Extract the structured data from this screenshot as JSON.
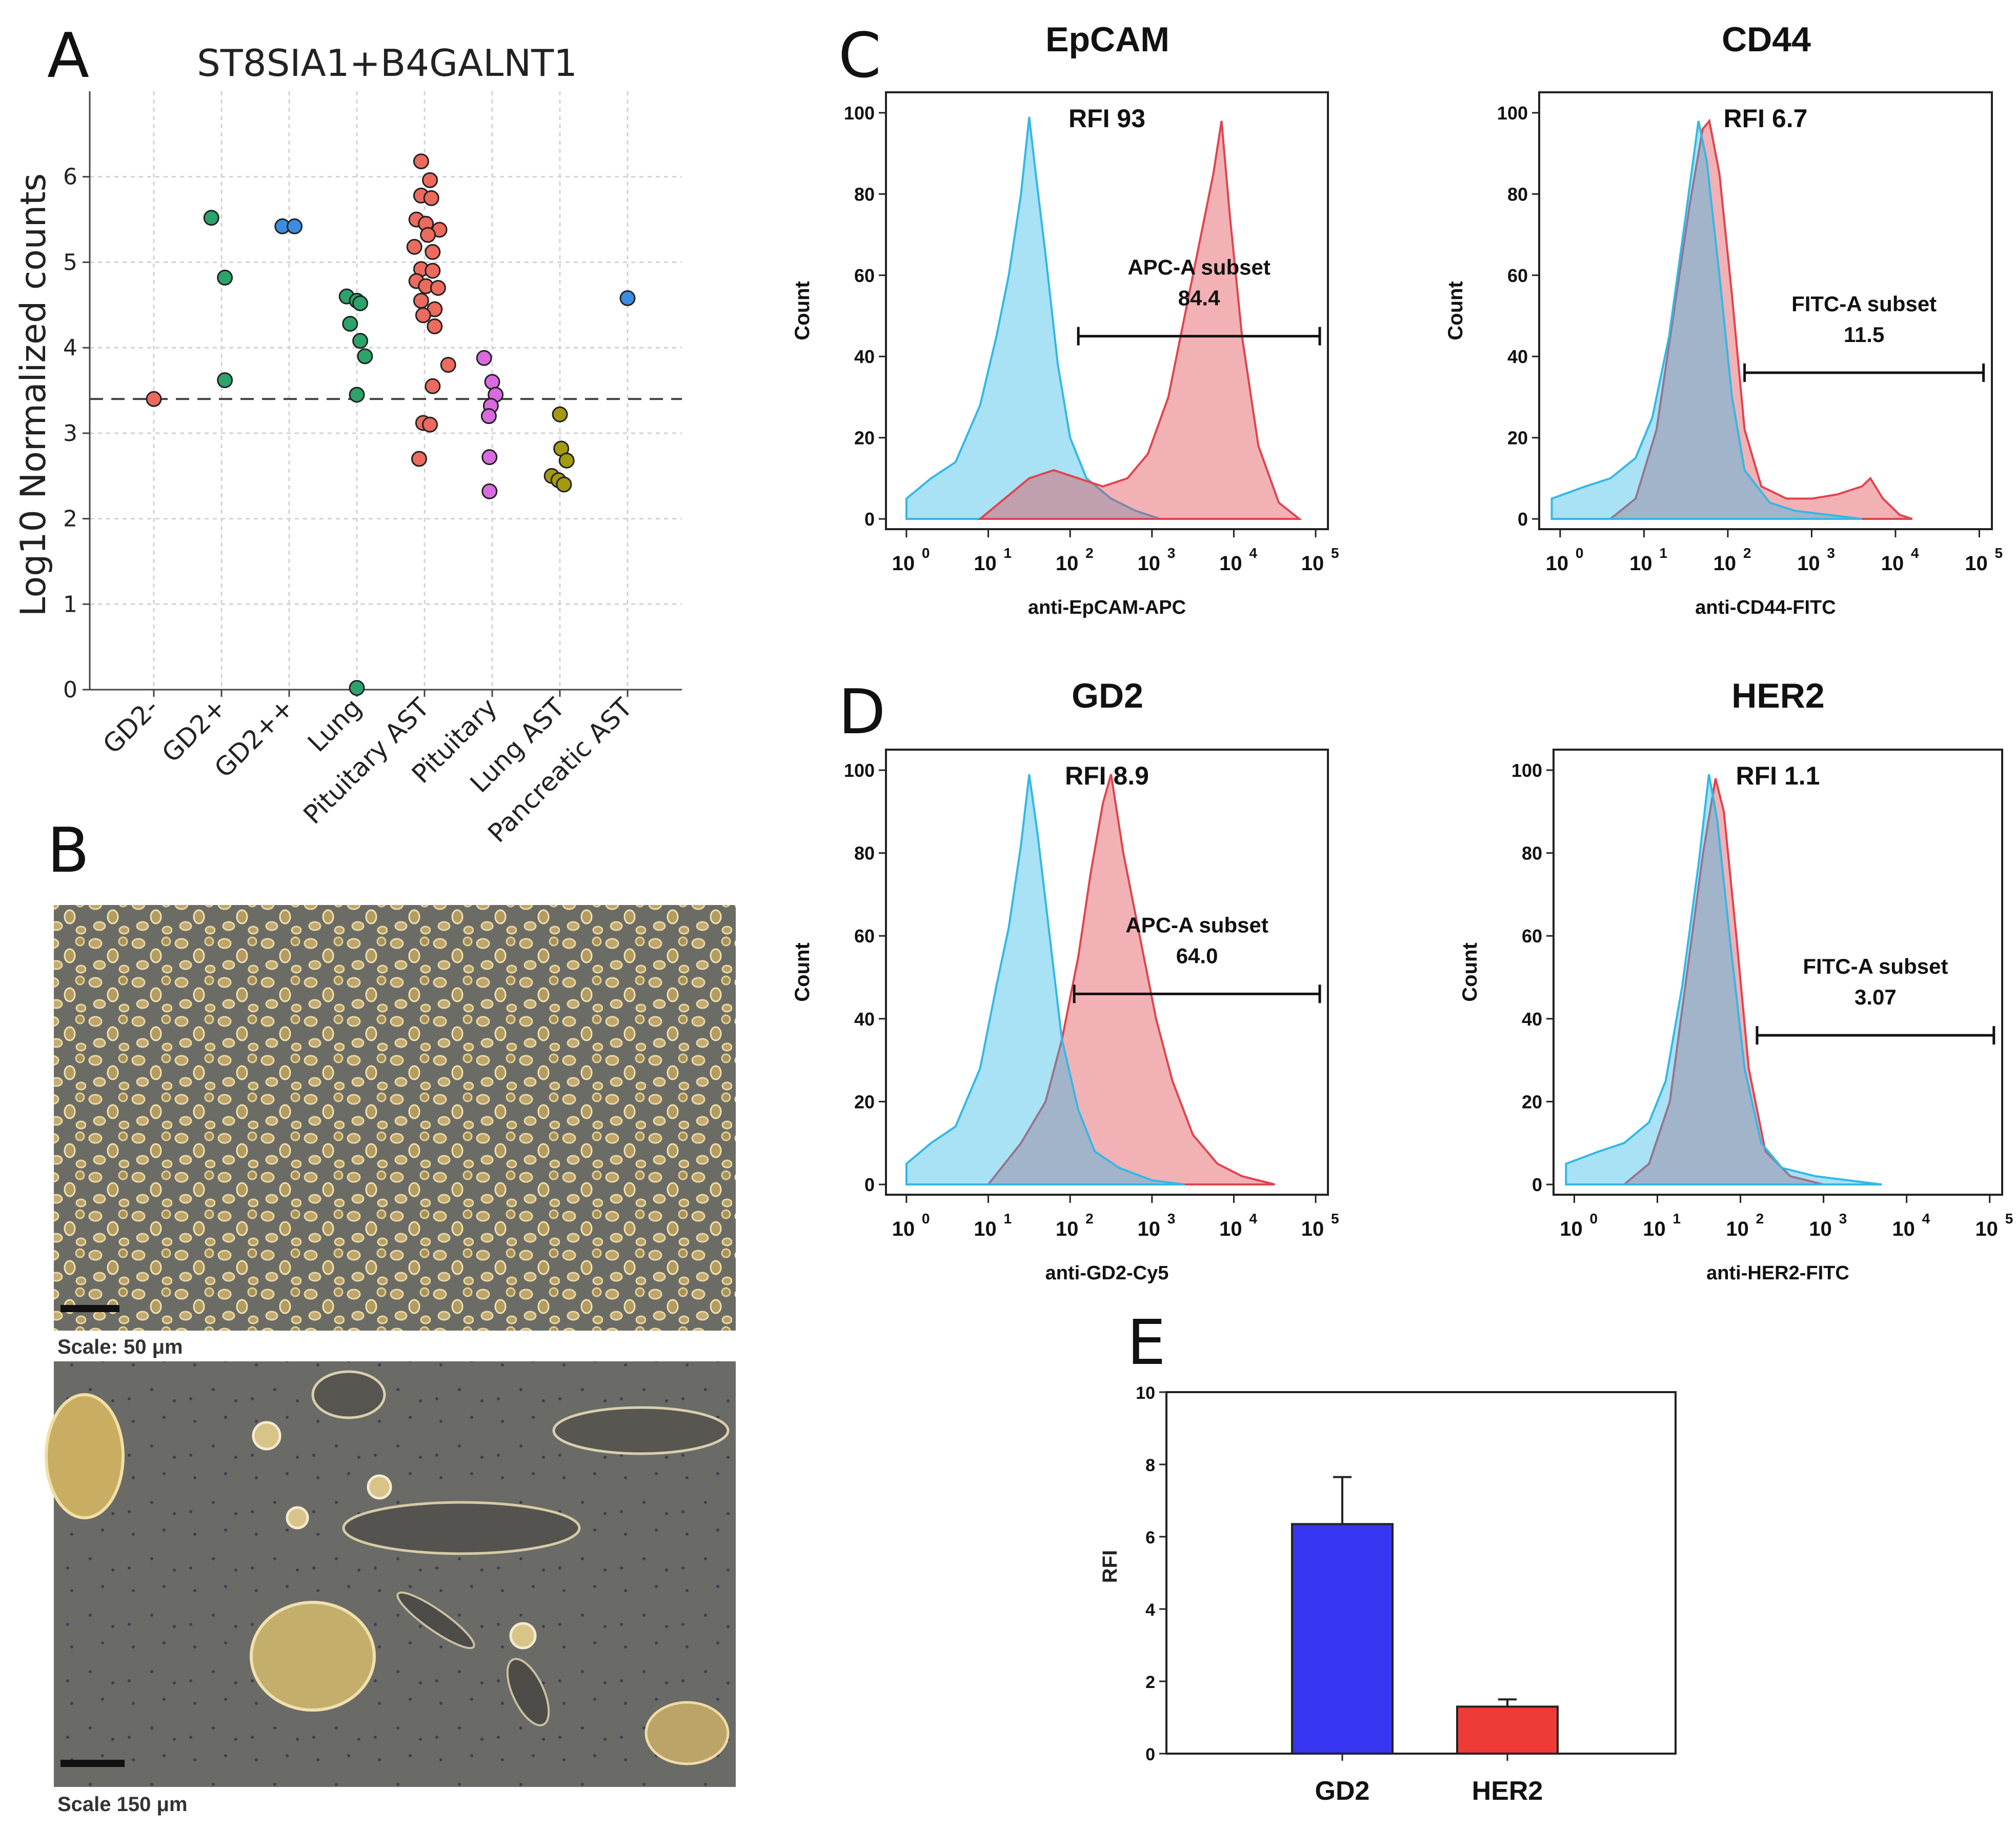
{
  "panels": {
    "a": "A",
    "b": "B",
    "c": "C",
    "d": "D",
    "e": "E"
  },
  "colors": {
    "gd2_neg": "#ed6a5e",
    "gd2_pos": "#2ca36b",
    "gd2_pp": "#3a8de0",
    "lung": "#2ca36b",
    "pituitary_ast": "#ed6a5e",
    "pituitary": "#d96adf",
    "lung_ast": "#a39a10",
    "pancreatic_ast": "#3a8de0",
    "hist_blue": "#33b8e6",
    "hist_red": "#e0444e",
    "bar_gd2": "#3636f0",
    "bar_her2": "#ee3b38"
  },
  "chart_data": [
    {
      "id": "A",
      "type": "scatter",
      "title": "ST8SIA1+B4GALNT1",
      "xlabel": "",
      "ylabel": "Log10 Normalized counts",
      "ylim": [
        0,
        7
      ],
      "yticks": [
        "0",
        "1",
        "2",
        "3",
        "4",
        "5",
        "6"
      ],
      "grid": true,
      "threshold": 3.4,
      "categories": [
        "GD2-",
        "GD2+",
        "GD2++",
        "Lung",
        "Pituitary AST",
        "Pituitary",
        "Lung AST",
        "Pancreatic AST"
      ],
      "points": [
        {
          "x": 0,
          "y": 3.4,
          "c": "gd2_neg"
        },
        {
          "x": 0.85,
          "y": 5.52,
          "c": "gd2_pos"
        },
        {
          "x": 1.05,
          "y": 4.82,
          "c": "gd2_pos"
        },
        {
          "x": 1.05,
          "y": 3.62,
          "c": "gd2_pos"
        },
        {
          "x": 1.9,
          "y": 5.42,
          "c": "gd2_pp"
        },
        {
          "x": 2.08,
          "y": 5.42,
          "c": "gd2_pp"
        },
        {
          "x": 2.85,
          "y": 4.6,
          "c": "lung"
        },
        {
          "x": 3.0,
          "y": 4.55,
          "c": "lung"
        },
        {
          "x": 3.05,
          "y": 4.52,
          "c": "lung"
        },
        {
          "x": 2.9,
          "y": 4.28,
          "c": "lung"
        },
        {
          "x": 3.05,
          "y": 4.08,
          "c": "lung"
        },
        {
          "x": 3.12,
          "y": 3.9,
          "c": "lung"
        },
        {
          "x": 3.0,
          "y": 3.45,
          "c": "lung"
        },
        {
          "x": 3.0,
          "y": 0.02,
          "c": "lung"
        },
        {
          "x": 3.95,
          "y": 6.18,
          "c": "pituitary_ast"
        },
        {
          "x": 4.08,
          "y": 5.96,
          "c": "pituitary_ast"
        },
        {
          "x": 3.95,
          "y": 5.78,
          "c": "pituitary_ast"
        },
        {
          "x": 4.1,
          "y": 5.75,
          "c": "pituitary_ast"
        },
        {
          "x": 3.88,
          "y": 5.5,
          "c": "pituitary_ast"
        },
        {
          "x": 4.02,
          "y": 5.45,
          "c": "pituitary_ast"
        },
        {
          "x": 4.22,
          "y": 5.38,
          "c": "pituitary_ast"
        },
        {
          "x": 4.05,
          "y": 5.32,
          "c": "pituitary_ast"
        },
        {
          "x": 3.85,
          "y": 5.18,
          "c": "pituitary_ast"
        },
        {
          "x": 4.12,
          "y": 5.12,
          "c": "pituitary_ast"
        },
        {
          "x": 3.95,
          "y": 4.92,
          "c": "pituitary_ast"
        },
        {
          "x": 4.12,
          "y": 4.9,
          "c": "pituitary_ast"
        },
        {
          "x": 3.88,
          "y": 4.78,
          "c": "pituitary_ast"
        },
        {
          "x": 4.02,
          "y": 4.72,
          "c": "pituitary_ast"
        },
        {
          "x": 4.2,
          "y": 4.7,
          "c": "pituitary_ast"
        },
        {
          "x": 3.95,
          "y": 4.55,
          "c": "pituitary_ast"
        },
        {
          "x": 4.15,
          "y": 4.45,
          "c": "pituitary_ast"
        },
        {
          "x": 3.98,
          "y": 4.38,
          "c": "pituitary_ast"
        },
        {
          "x": 4.15,
          "y": 4.25,
          "c": "pituitary_ast"
        },
        {
          "x": 4.35,
          "y": 3.8,
          "c": "pituitary_ast"
        },
        {
          "x": 4.12,
          "y": 3.55,
          "c": "pituitary_ast"
        },
        {
          "x": 3.98,
          "y": 3.12,
          "c": "pituitary_ast"
        },
        {
          "x": 4.08,
          "y": 3.1,
          "c": "pituitary_ast"
        },
        {
          "x": 3.92,
          "y": 2.7,
          "c": "pituitary_ast"
        },
        {
          "x": 4.88,
          "y": 3.88,
          "c": "pituitary"
        },
        {
          "x": 5.0,
          "y": 3.6,
          "c": "pituitary"
        },
        {
          "x": 5.05,
          "y": 3.45,
          "c": "pituitary"
        },
        {
          "x": 4.98,
          "y": 3.32,
          "c": "pituitary"
        },
        {
          "x": 4.95,
          "y": 3.2,
          "c": "pituitary"
        },
        {
          "x": 4.96,
          "y": 2.72,
          "c": "pituitary"
        },
        {
          "x": 4.96,
          "y": 2.32,
          "c": "pituitary"
        },
        {
          "x": 6.0,
          "y": 3.22,
          "c": "lung_ast"
        },
        {
          "x": 6.02,
          "y": 2.82,
          "c": "lung_ast"
        },
        {
          "x": 6.1,
          "y": 2.68,
          "c": "lung_ast"
        },
        {
          "x": 5.88,
          "y": 2.5,
          "c": "lung_ast"
        },
        {
          "x": 5.98,
          "y": 2.45,
          "c": "lung_ast"
        },
        {
          "x": 6.06,
          "y": 2.4,
          "c": "lung_ast"
        },
        {
          "x": 7.0,
          "y": 4.58,
          "c": "pancreatic_ast"
        }
      ]
    },
    {
      "id": "C1",
      "type": "area",
      "title": "EpCAM",
      "xlabel": "anti-EpCAM-APC",
      "ylabel": "Count",
      "rfi": "RFI 93",
      "gate_label": "APC-A subset",
      "gate_value": "84.4",
      "gate": [
        2.1,
        5.05
      ],
      "gate_y": 45,
      "xlim": [
        -0.25,
        5.15
      ],
      "ylim": [
        0,
        100
      ],
      "log_x": true,
      "series": [
        {
          "c": "hist_blue",
          "points": [
            [
              0.0,
              5
            ],
            [
              0.3,
              10
            ],
            [
              0.6,
              14
            ],
            [
              0.9,
              28
            ],
            [
              1.1,
              45
            ],
            [
              1.25,
              60
            ],
            [
              1.4,
              80
            ],
            [
              1.5,
              99
            ],
            [
              1.58,
              85
            ],
            [
              1.7,
              65
            ],
            [
              1.85,
              38
            ],
            [
              2.0,
              20
            ],
            [
              2.2,
              10
            ],
            [
              2.5,
              5
            ],
            [
              2.8,
              2
            ],
            [
              3.1,
              0
            ]
          ]
        },
        {
          "c": "hist_red",
          "points": [
            [
              0.9,
              0
            ],
            [
              1.2,
              5
            ],
            [
              1.5,
              10
            ],
            [
              1.8,
              12
            ],
            [
              2.1,
              10
            ],
            [
              2.4,
              8
            ],
            [
              2.7,
              10
            ],
            [
              2.95,
              16
            ],
            [
              3.2,
              30
            ],
            [
              3.45,
              55
            ],
            [
              3.6,
              70
            ],
            [
              3.75,
              85
            ],
            [
              3.85,
              98
            ],
            [
              3.95,
              75
            ],
            [
              4.1,
              45
            ],
            [
              4.3,
              18
            ],
            [
              4.55,
              4
            ],
            [
              4.8,
              0
            ]
          ]
        }
      ]
    },
    {
      "id": "C2",
      "type": "area",
      "title": "CD44",
      "xlabel": "anti-CD44-FITC",
      "ylabel": "Count",
      "rfi": "RFI 6.7",
      "gate_label": "FITC-A subset",
      "gate_value": "11.5",
      "gate": [
        2.2,
        5.05
      ],
      "gate_y": 36,
      "xlim": [
        -0.25,
        5.15
      ],
      "ylim": [
        0,
        100
      ],
      "log_x": true,
      "series": [
        {
          "c": "hist_red",
          "points": [
            [
              0.6,
              0
            ],
            [
              0.9,
              5
            ],
            [
              1.15,
              22
            ],
            [
              1.35,
              50
            ],
            [
              1.55,
              78
            ],
            [
              1.7,
              96
            ],
            [
              1.78,
              98
            ],
            [
              1.9,
              85
            ],
            [
              2.05,
              55
            ],
            [
              2.2,
              22
            ],
            [
              2.4,
              8
            ],
            [
              2.7,
              5
            ],
            [
              3.0,
              5
            ],
            [
              3.3,
              6
            ],
            [
              3.6,
              8
            ],
            [
              3.7,
              10
            ],
            [
              3.85,
              5
            ],
            [
              4.05,
              1
            ],
            [
              4.2,
              0
            ]
          ]
        },
        {
          "c": "hist_blue",
          "points": [
            [
              -0.1,
              5
            ],
            [
              0.3,
              8
            ],
            [
              0.6,
              10
            ],
            [
              0.9,
              15
            ],
            [
              1.1,
              25
            ],
            [
              1.3,
              45
            ],
            [
              1.5,
              75
            ],
            [
              1.65,
              98
            ],
            [
              1.75,
              88
            ],
            [
              1.9,
              60
            ],
            [
              2.05,
              30
            ],
            [
              2.2,
              12
            ],
            [
              2.5,
              4
            ],
            [
              2.8,
              2
            ],
            [
              3.2,
              1
            ],
            [
              3.6,
              0
            ]
          ]
        }
      ]
    },
    {
      "id": "D1",
      "type": "area",
      "title": "GD2",
      "xlabel": "anti-GD2-Cy5",
      "ylabel": "Count",
      "rfi": "RFI 8.9",
      "gate_label": "APC-A subset",
      "gate_value": "64.0",
      "gate": [
        2.05,
        5.05
      ],
      "gate_y": 46,
      "xlim": [
        -0.25,
        5.15
      ],
      "ylim": [
        0,
        100
      ],
      "log_x": true,
      "series": [
        {
          "c": "hist_red",
          "points": [
            [
              1.0,
              0
            ],
            [
              1.4,
              10
            ],
            [
              1.7,
              20
            ],
            [
              1.9,
              35
            ],
            [
              2.1,
              55
            ],
            [
              2.25,
              75
            ],
            [
              2.4,
              92
            ],
            [
              2.5,
              99
            ],
            [
              2.65,
              80
            ],
            [
              2.85,
              60
            ],
            [
              3.05,
              40
            ],
            [
              3.25,
              25
            ],
            [
              3.5,
              12
            ],
            [
              3.8,
              5
            ],
            [
              4.1,
              2
            ],
            [
              4.5,
              0
            ]
          ]
        },
        {
          "c": "hist_blue",
          "points": [
            [
              0.0,
              5
            ],
            [
              0.3,
              10
            ],
            [
              0.6,
              14
            ],
            [
              0.9,
              28
            ],
            [
              1.1,
              48
            ],
            [
              1.25,
              62
            ],
            [
              1.4,
              82
            ],
            [
              1.5,
              99
            ],
            [
              1.6,
              85
            ],
            [
              1.75,
              60
            ],
            [
              1.9,
              35
            ],
            [
              2.1,
              18
            ],
            [
              2.3,
              8
            ],
            [
              2.6,
              4
            ],
            [
              3.0,
              1
            ],
            [
              3.4,
              0
            ]
          ]
        }
      ]
    },
    {
      "id": "D2",
      "type": "area",
      "title": "HER2",
      "xlabel": "anti-HER2-FITC",
      "ylabel": "Count",
      "rfi": "RFI 1.1",
      "gate_label": "FITC-A subset",
      "gate_value": "3.07",
      "gate": [
        2.2,
        5.05
      ],
      "gate_y": 36,
      "xlim": [
        -0.25,
        5.15
      ],
      "ylim": [
        0,
        100
      ],
      "log_x": true,
      "series": [
        {
          "c": "hist_red",
          "points": [
            [
              0.6,
              0
            ],
            [
              0.9,
              5
            ],
            [
              1.15,
              20
            ],
            [
              1.35,
              50
            ],
            [
              1.55,
              80
            ],
            [
              1.7,
              98
            ],
            [
              1.8,
              90
            ],
            [
              1.95,
              60
            ],
            [
              2.1,
              28
            ],
            [
              2.3,
              8
            ],
            [
              2.6,
              2
            ],
            [
              3.0,
              0
            ]
          ]
        },
        {
          "c": "hist_blue",
          "points": [
            [
              -0.1,
              5
            ],
            [
              0.3,
              8
            ],
            [
              0.6,
              10
            ],
            [
              0.9,
              15
            ],
            [
              1.1,
              25
            ],
            [
              1.3,
              48
            ],
            [
              1.5,
              78
            ],
            [
              1.62,
              99
            ],
            [
              1.72,
              88
            ],
            [
              1.88,
              58
            ],
            [
              2.05,
              28
            ],
            [
              2.25,
              10
            ],
            [
              2.5,
              4
            ],
            [
              2.9,
              2
            ],
            [
              3.3,
              1
            ],
            [
              3.7,
              0
            ]
          ]
        }
      ]
    },
    {
      "id": "E",
      "type": "bar",
      "title": "",
      "xlabel": "",
      "ylabel": "RFI",
      "categories": [
        "GD2",
        "HER2"
      ],
      "values": [
        6.35,
        1.3
      ],
      "errors": [
        1.3,
        0.2
      ],
      "ylim": [
        0,
        10
      ],
      "yticks": [
        "0",
        "2",
        "4",
        "6",
        "8",
        "10"
      ]
    }
  ],
  "hist_y_ticks": [
    "0",
    "20",
    "40",
    "60",
    "80",
    "100"
  ],
  "hist_x_ticks": [
    {
      "base": "10",
      "exp": "0"
    },
    {
      "base": "10",
      "exp": "1"
    },
    {
      "base": "10",
      "exp": "2"
    },
    {
      "base": "10",
      "exp": "3"
    },
    {
      "base": "10",
      "exp": "4"
    },
    {
      "base": "10",
      "exp": "5"
    }
  ],
  "micrographs": {
    "top_scale": "Scale: 50 μm",
    "bottom_scale": "Scale 150 μm"
  }
}
